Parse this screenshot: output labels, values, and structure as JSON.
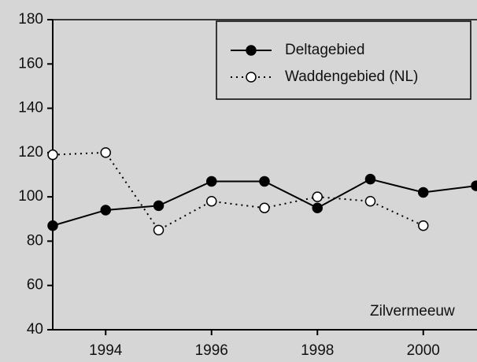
{
  "chart_data": {
    "type": "line",
    "x": [
      1993,
      1994,
      1995,
      1996,
      1997,
      1998,
      1999,
      2000,
      2001
    ],
    "series": [
      {
        "name": "Deltagebied",
        "color": "#000000",
        "values": [
          87,
          94,
          96,
          107,
          107,
          95,
          108,
          102,
          105
        ]
      },
      {
        "name": "Waddengebied (NL)",
        "color": "#000000",
        "values": [
          119,
          120,
          85,
          98,
          95,
          100,
          98,
          87,
          null
        ]
      }
    ],
    "xlim": [
      1993,
      2001
    ],
    "xticks": [
      1994,
      1996,
      1998,
      2000
    ],
    "ylim": [
      40,
      180
    ],
    "yticks": [
      40,
      60,
      80,
      100,
      120,
      140,
      160,
      180
    ],
    "annotation": "Zilvermeeuw"
  }
}
